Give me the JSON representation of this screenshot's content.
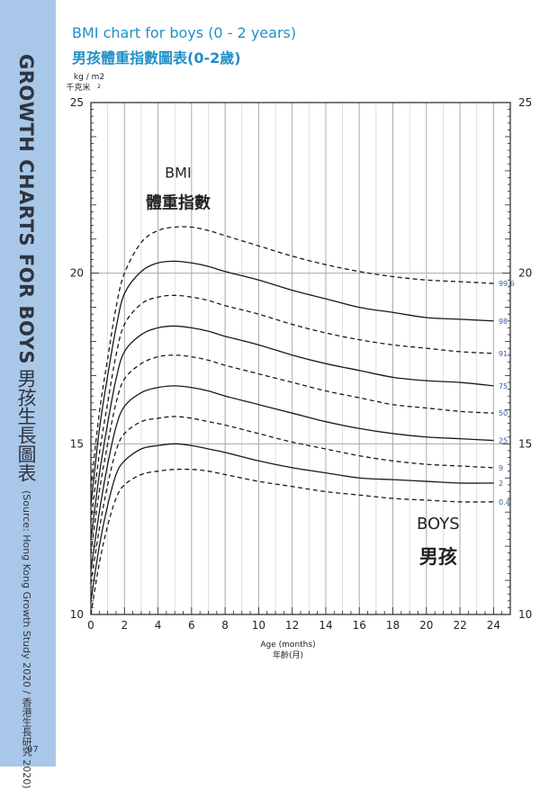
{
  "page": {
    "side_title": "GROWTH CHARTS FOR BOYS",
    "side_title_cn": "男孩生長圖表",
    "side_source": "(Source: Hong Kong Growth Study 2020 / 香港生長研究 2020)",
    "page_number": "07",
    "colors": {
      "band": "#a9c7e8",
      "title": "#1e90c8",
      "grid_major": "#aaaaaa",
      "percentile_label": "#3a5fa8"
    }
  },
  "chart_data": {
    "type": "line",
    "title": "BMI chart for boys (0 - 2 years)",
    "subtitle": "男孩體重指數圖表(0-2歲)",
    "y_unit": "kg / m2",
    "y_unit_superscript": "2",
    "y_unit_cn": "千克米",
    "xlabel": "Age (months)",
    "xlabel_cn": "年齡(月)",
    "annotation_bmi": "BMI",
    "annotation_bmi_cn": "體重指數",
    "annotation_boys": "BOYS",
    "annotation_boys_cn": "男孩",
    "xlim": [
      0,
      25
    ],
    "ylim": [
      10,
      25
    ],
    "x_ticks": [
      "0",
      "2",
      "4",
      "6",
      "8",
      "10",
      "12",
      "14",
      "16",
      "18",
      "20",
      "22",
      "24"
    ],
    "y_ticks": [
      "10",
      "15",
      "20",
      "25"
    ],
    "grid": true,
    "x": [
      0,
      0.5,
      1,
      1.5,
      2,
      3,
      4,
      5,
      6,
      7,
      8,
      10,
      12,
      14,
      16,
      18,
      20,
      22,
      24
    ],
    "series": [
      {
        "name": "99.6",
        "dashed": true,
        "values": [
          13.7,
          15.9,
          17.5,
          19.0,
          20.0,
          20.9,
          21.25,
          21.35,
          21.35,
          21.25,
          21.1,
          20.8,
          20.5,
          20.25,
          20.05,
          19.9,
          19.8,
          19.75,
          19.7
        ]
      },
      {
        "name": "98",
        "dashed": false,
        "values": [
          13.2,
          15.4,
          17.0,
          18.4,
          19.4,
          20.05,
          20.3,
          20.35,
          20.3,
          20.2,
          20.05,
          19.8,
          19.5,
          19.25,
          19.0,
          18.85,
          18.7,
          18.65,
          18.6
        ]
      },
      {
        "name": "91",
        "dashed": true,
        "values": [
          12.7,
          14.7,
          16.2,
          17.6,
          18.5,
          19.1,
          19.3,
          19.35,
          19.3,
          19.2,
          19.05,
          18.8,
          18.5,
          18.25,
          18.05,
          17.9,
          17.8,
          17.7,
          17.65
        ]
      },
      {
        "name": "75",
        "dashed": false,
        "values": [
          12.2,
          14.1,
          15.6,
          16.9,
          17.7,
          18.2,
          18.4,
          18.45,
          18.4,
          18.3,
          18.15,
          17.9,
          17.6,
          17.35,
          17.15,
          16.95,
          16.85,
          16.8,
          16.7
        ]
      },
      {
        "name": "50",
        "dashed": true,
        "values": [
          11.8,
          13.6,
          15.0,
          16.2,
          16.9,
          17.35,
          17.55,
          17.6,
          17.55,
          17.45,
          17.3,
          17.05,
          16.8,
          16.55,
          16.35,
          16.15,
          16.05,
          15.95,
          15.9
        ]
      },
      {
        "name": "25",
        "dashed": false,
        "values": [
          11.3,
          13.0,
          14.4,
          15.5,
          16.1,
          16.5,
          16.65,
          16.7,
          16.65,
          16.55,
          16.4,
          16.15,
          15.9,
          15.65,
          15.45,
          15.3,
          15.2,
          15.15,
          15.1
        ]
      },
      {
        "name": "9",
        "dashed": true,
        "values": [
          10.9,
          12.5,
          13.8,
          14.8,
          15.3,
          15.65,
          15.75,
          15.8,
          15.75,
          15.65,
          15.55,
          15.3,
          15.05,
          14.85,
          14.65,
          14.5,
          14.4,
          14.35,
          14.3
        ]
      },
      {
        "name": "2",
        "dashed": false,
        "values": [
          10.4,
          12.0,
          13.2,
          14.1,
          14.5,
          14.85,
          14.95,
          15.0,
          14.95,
          14.85,
          14.75,
          14.5,
          14.3,
          14.15,
          14.0,
          13.95,
          13.9,
          13.85,
          13.85
        ]
      },
      {
        "name": "0.4",
        "dashed": true,
        "values": [
          10.0,
          11.5,
          12.6,
          13.4,
          13.8,
          14.1,
          14.2,
          14.25,
          14.25,
          14.2,
          14.1,
          13.9,
          13.75,
          13.6,
          13.5,
          13.4,
          13.35,
          13.3,
          13.3
        ]
      }
    ]
  }
}
